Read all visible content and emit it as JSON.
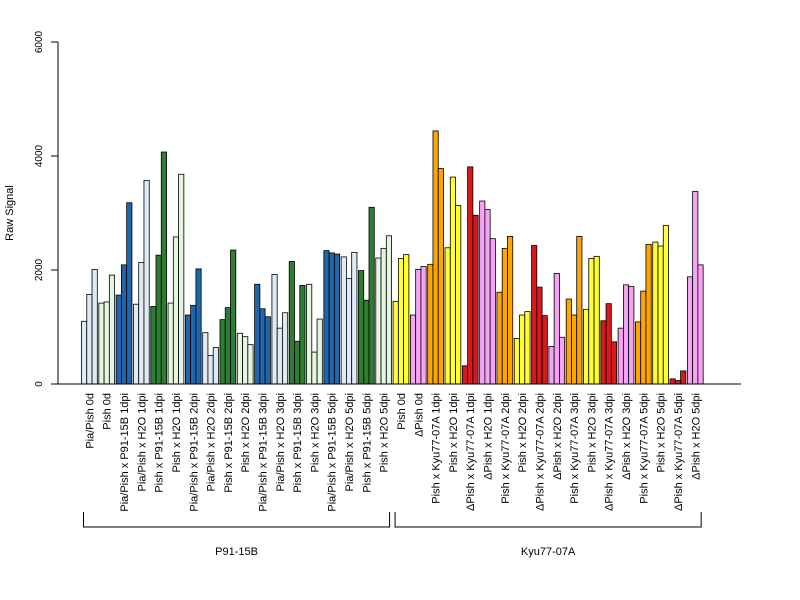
{
  "chart_data": {
    "type": "bar",
    "ylabel": "Raw Signal",
    "xlabel": "",
    "ylim": [
      0,
      6000
    ],
    "yticks": [
      0,
      2000,
      4000,
      6000
    ],
    "grid": false,
    "legend": "none",
    "categories": [
      {
        "label": "Pia/Pish 0d",
        "color": "#deebf7",
        "values": [
          1100,
          1570,
          2010
        ]
      },
      {
        "label": "Pish 0d",
        "color": "#e5f5e0",
        "values": [
          1420,
          1440,
          1910
        ]
      },
      {
        "label": "Pia/Pish x P91-15B 1dpi",
        "color": "#2166ac",
        "values": [
          1560,
          2090,
          3180
        ]
      },
      {
        "label": "Pia/Pish x H2O 1dpi",
        "color": "#deebf7",
        "values": [
          1400,
          2130,
          3570
        ]
      },
      {
        "label": "Pish x P91-15B 1dpi",
        "color": "#2e7d32",
        "values": [
          1360,
          2260,
          4070
        ]
      },
      {
        "label": "Pish x H2O 1dpi",
        "color": "#e5f5e0",
        "values": [
          1420,
          2580,
          3680
        ]
      },
      {
        "label": "Pia/Pish x P91-15B 2dpi",
        "color": "#2166ac",
        "values": [
          1210,
          1380,
          2020
        ]
      },
      {
        "label": "Pia/Pish x H2O 2dpi",
        "color": "#deebf7",
        "values": [
          900,
          500,
          640
        ]
      },
      {
        "label": "Pish x P91-15B 2dpi",
        "color": "#2e7d32",
        "values": [
          1130,
          1340,
          2350
        ]
      },
      {
        "label": "Pish x H2O 2dpi",
        "color": "#e5f5e0",
        "values": [
          890,
          830,
          690
        ]
      },
      {
        "label": "Pia/Pish x P91-15B 3dpi",
        "color": "#2166ac",
        "values": [
          1750,
          1320,
          1180
        ]
      },
      {
        "label": "Pia/Pish x H2O 3dpi",
        "color": "#deebf7",
        "values": [
          1920,
          980,
          1250
        ]
      },
      {
        "label": "Pish x P91-15B 3dpi",
        "color": "#2e7d32",
        "values": [
          2150,
          750,
          1730
        ]
      },
      {
        "label": "Pish x H2O 3dpi",
        "color": "#e5f5e0",
        "values": [
          1750,
          560,
          1140
        ]
      },
      {
        "label": "Pia/Pish x P91-15B 5dpi",
        "color": "#2166ac",
        "values": [
          2340,
          2300,
          2280
        ]
      },
      {
        "label": "Pia/Pish x H2O 5dpi",
        "color": "#deebf7",
        "values": [
          2230,
          1850,
          2310
        ]
      },
      {
        "label": "Pish x P91-15B 5dpi",
        "color": "#2e7d32",
        "values": [
          1990,
          1470,
          3100
        ]
      },
      {
        "label": "Pish x H2O 5dpi",
        "color": "#e5f5e0",
        "values": [
          2210,
          2380,
          2600
        ]
      },
      {
        "label": "Pish 0d",
        "color": "#ffff33",
        "values": [
          1450,
          2200,
          2270
        ]
      },
      {
        "label": "ΔPish 0d",
        "color": "#f5a3f5",
        "values": [
          1210,
          2010,
          2060
        ]
      },
      {
        "label": "Pish x Kyu77-07A 1dpi",
        "color": "#ffa500",
        "values": [
          2100,
          4440,
          3780
        ]
      },
      {
        "label": "Pish x H2O 1dpi",
        "color": "#ffff33",
        "values": [
          2390,
          3630,
          3130
        ]
      },
      {
        "label": "ΔPish x Kyu77-07A 1dpi",
        "color": "#d7191c",
        "values": [
          320,
          3810,
          2960
        ]
      },
      {
        "label": "ΔPish x H2O 1dpi",
        "color": "#f5a3f5",
        "values": [
          3210,
          3060,
          2550
        ]
      },
      {
        "label": "Pish x Kyu77-07A 2dpi",
        "color": "#ffa500",
        "values": [
          1610,
          2380,
          2590
        ]
      },
      {
        "label": "Pish x H2O 2dpi",
        "color": "#ffff33",
        "values": [
          800,
          1210,
          1270
        ]
      },
      {
        "label": "ΔPish x Kyu77-07A 2dpi",
        "color": "#d7191c",
        "values": [
          2430,
          1700,
          1200
        ]
      },
      {
        "label": "ΔPish x H2O 2dpi",
        "color": "#f5a3f5",
        "values": [
          660,
          1940,
          820
        ]
      },
      {
        "label": "Pish x Kyu77-07A 3dpi",
        "color": "#ffa500",
        "values": [
          1490,
          1210,
          2590
        ]
      },
      {
        "label": "Pish x H2O 3dpi",
        "color": "#ffff33",
        "values": [
          1310,
          2200,
          2240
        ]
      },
      {
        "label": "ΔPish x Kyu77-07A 3dpi",
        "color": "#d7191c",
        "values": [
          1110,
          1410,
          740
        ]
      },
      {
        "label": "ΔPish x H2O 3dpi",
        "color": "#f5a3f5",
        "values": [
          980,
          1740,
          1710
        ]
      },
      {
        "label": "Pish x Kyu77-07A 5dpi",
        "color": "#ffa500",
        "values": [
          1090,
          1630,
          2450
        ]
      },
      {
        "label": "Pish x H2O 5dpi",
        "color": "#ffff33",
        "values": [
          2490,
          2420,
          2780
        ]
      },
      {
        "label": "ΔPish x Kyu77-07A 5dpi",
        "color": "#d7191c",
        "values": [
          90,
          60,
          230
        ]
      },
      {
        "label": "ΔPish x H2O 5dpi",
        "color": "#f5a3f5",
        "values": [
          1880,
          3380,
          2090
        ]
      }
    ],
    "groups": [
      {
        "label": "P91-15B",
        "first": 0,
        "last": 17
      },
      {
        "label": "Kyu77-07A",
        "first": 18,
        "last": 35
      }
    ]
  }
}
